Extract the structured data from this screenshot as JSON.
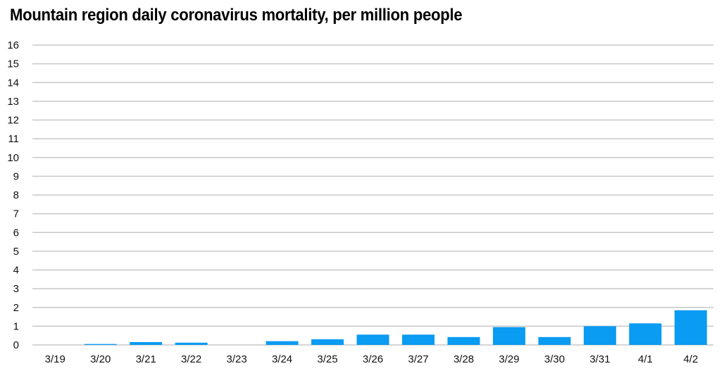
{
  "chart_data": {
    "type": "bar",
    "title": "Mountain region daily coronavirus mortality, per million people",
    "xlabel": "",
    "ylabel": "",
    "categories": [
      "3/19",
      "3/20",
      "3/21",
      "3/22",
      "3/23",
      "3/24",
      "3/25",
      "3/26",
      "3/27",
      "3/28",
      "3/29",
      "3/30",
      "3/31",
      "4/1",
      "4/2"
    ],
    "values": [
      0,
      0.05,
      0.15,
      0.12,
      0,
      0.2,
      0.3,
      0.55,
      0.55,
      0.42,
      0.95,
      0.42,
      1.0,
      1.15,
      1.85
    ],
    "ylim": [
      0,
      16
    ],
    "yticks": [
      0,
      1,
      2,
      3,
      4,
      5,
      6,
      7,
      8,
      9,
      10,
      11,
      12,
      13,
      14,
      15,
      16
    ],
    "grid": true,
    "colors": {
      "bar": "#0A9BF2",
      "grid": "#C8C8C8"
    }
  }
}
